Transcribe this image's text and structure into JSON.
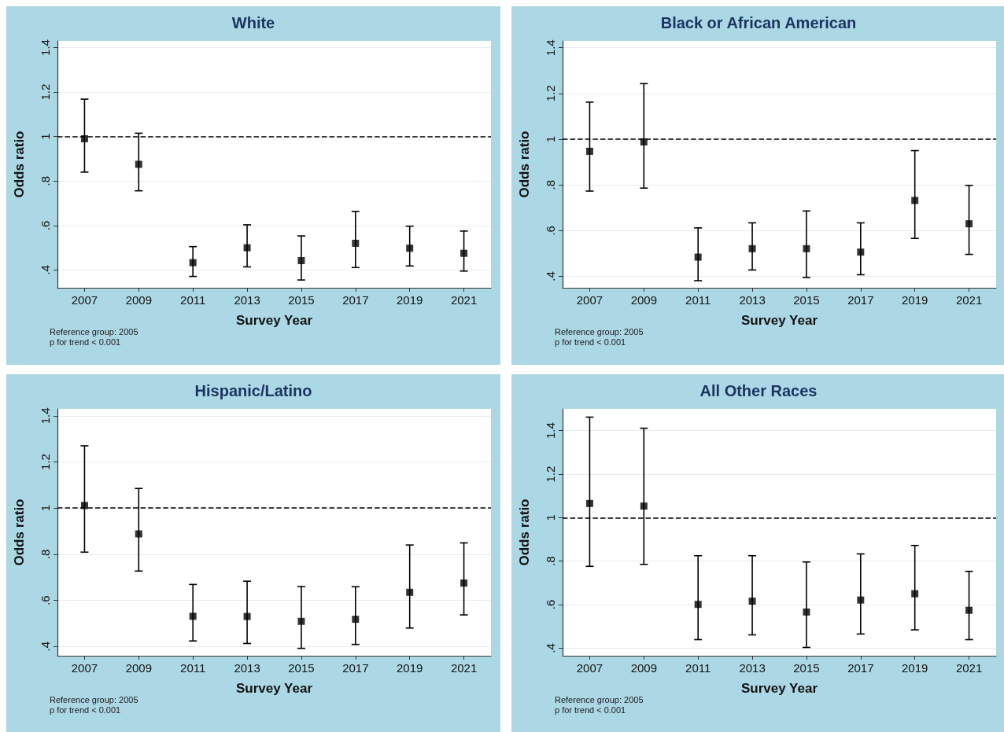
{
  "chart_data": [
    {
      "type": "scatter",
      "title": "White",
      "xlabel": "Survey Year",
      "ylabel": "Odds ratio",
      "categories": [
        "2007",
        "2009",
        "2011",
        "2013",
        "2015",
        "2017",
        "2019",
        "2021"
      ],
      "series": [
        {
          "color": "#000000",
          "values": [
            0.99,
            0.875,
            0.433,
            0.5,
            0.442,
            0.52,
            0.498,
            0.475
          ],
          "errors": [
            [
              0.84,
              1.168
            ],
            [
              0.756,
              1.015
            ],
            [
              0.371,
              0.505
            ],
            [
              0.414,
              0.603
            ],
            [
              0.355,
              0.553
            ],
            [
              0.411,
              0.663
            ],
            [
              0.418,
              0.597
            ],
            [
              0.395,
              0.575
            ]
          ]
        }
      ],
      "ylim": [
        0.32,
        1.43
      ],
      "yticks": [
        {
          "value": 0.4,
          "label": ".4"
        },
        {
          "value": 0.6,
          "label": ".6"
        },
        {
          "value": 0.8,
          "label": ".8"
        },
        {
          "value": 1,
          "label": "1"
        },
        {
          "value": 1.2,
          "label": "1.2"
        },
        {
          "value": 1.4,
          "label": "1.4"
        }
      ],
      "ref_lines": [
        {
          "axis": "y",
          "value": 1,
          "color": "#000000",
          "line_style": "dashed"
        }
      ],
      "grid": "y",
      "marker": "square",
      "annotations": [
        "Reference group: 2005",
        "p for trend < 0.001"
      ]
    },
    {
      "type": "scatter",
      "title": "Black or African American",
      "xlabel": "Survey Year",
      "ylabel": "Odds ratio",
      "categories": [
        "2007",
        "2009",
        "2011",
        "2013",
        "2015",
        "2017",
        "2019",
        "2021"
      ],
      "series": [
        {
          "color": "#000000",
          "values": [
            0.947,
            0.988,
            0.484,
            0.521,
            0.521,
            0.506,
            0.732,
            0.63
          ],
          "errors": [
            [
              0.773,
              1.162
            ],
            [
              0.786,
              1.243
            ],
            [
              0.381,
              0.612
            ],
            [
              0.428,
              0.634
            ],
            [
              0.395,
              0.686
            ],
            [
              0.407,
              0.634
            ],
            [
              0.566,
              0.95
            ],
            [
              0.496,
              0.798
            ]
          ]
        }
      ],
      "ylim": [
        0.35,
        1.43
      ],
      "yticks": [
        {
          "value": 0.4,
          "label": ".4"
        },
        {
          "value": 0.6,
          "label": ".6"
        },
        {
          "value": 0.8,
          "label": ".8"
        },
        {
          "value": 1,
          "label": "1"
        },
        {
          "value": 1.2,
          "label": "1.2"
        },
        {
          "value": 1.4,
          "label": "1.4"
        }
      ],
      "ref_lines": [
        {
          "axis": "y",
          "value": 1,
          "color": "#000000",
          "line_style": "dashed"
        }
      ],
      "grid": "y",
      "marker": "square",
      "annotations": [
        "Reference group: 2005",
        "p for trend < 0.001"
      ]
    },
    {
      "type": "scatter",
      "title": "Hispanic/Latino",
      "xlabel": "Survey Year",
      "ylabel": "Odds ratio",
      "categories": [
        "2007",
        "2009",
        "2011",
        "2013",
        "2015",
        "2017",
        "2019",
        "2021"
      ],
      "series": [
        {
          "color": "#000000",
          "values": [
            1.011,
            0.888,
            0.531,
            0.53,
            0.509,
            0.518,
            0.635,
            0.675
          ],
          "errors": [
            [
              0.809,
              1.27
            ],
            [
              0.727,
              1.085
            ],
            [
              0.424,
              0.669
            ],
            [
              0.413,
              0.683
            ],
            [
              0.392,
              0.66
            ],
            [
              0.409,
              0.659
            ],
            [
              0.48,
              0.84
            ],
            [
              0.537,
              0.849
            ]
          ]
        }
      ],
      "ylim": [
        0.36,
        1.43
      ],
      "yticks": [
        {
          "value": 0.4,
          "label": ".4"
        },
        {
          "value": 0.6,
          "label": ".6"
        },
        {
          "value": 0.8,
          "label": ".8"
        },
        {
          "value": 1,
          "label": "1"
        },
        {
          "value": 1.2,
          "label": "1.2"
        },
        {
          "value": 1.4,
          "label": "1.4"
        }
      ],
      "ref_lines": [
        {
          "axis": "y",
          "value": 1,
          "color": "#000000",
          "line_style": "dashed"
        }
      ],
      "grid": "y",
      "marker": "square",
      "annotations": [
        "Reference group: 2005",
        "p for trend < 0.001"
      ]
    },
    {
      "type": "scatter",
      "title": "All Other Races",
      "xlabel": "Survey Year",
      "ylabel": "Odds ratio",
      "categories": [
        "2007",
        "2009",
        "2011",
        "2013",
        "2015",
        "2017",
        "2019",
        "2021"
      ],
      "series": [
        {
          "color": "#000000",
          "values": [
            1.065,
            1.053,
            0.601,
            0.616,
            0.566,
            0.621,
            0.65,
            0.574
          ],
          "errors": [
            [
              0.776,
              1.462
            ],
            [
              0.785,
              1.411
            ],
            [
              0.439,
              0.825
            ],
            [
              0.461,
              0.825
            ],
            [
              0.403,
              0.796
            ],
            [
              0.465,
              0.833
            ],
            [
              0.484,
              0.872
            ],
            [
              0.439,
              0.753
            ]
          ]
        }
      ],
      "ylim": [
        0.365,
        1.5
      ],
      "yticks": [
        {
          "value": 0.4,
          "label": ".4"
        },
        {
          "value": 0.6,
          "label": ".6"
        },
        {
          "value": 0.8,
          "label": ".8"
        },
        {
          "value": 1,
          "label": "1"
        },
        {
          "value": 1.2,
          "label": "1.2"
        },
        {
          "value": 1.4,
          "label": "1.4"
        }
      ],
      "ref_lines": [
        {
          "axis": "y",
          "value": 1,
          "color": "#000000",
          "line_style": "dashed"
        }
      ],
      "grid": "y",
      "marker": "square",
      "annotations": [
        "Reference group: 2005",
        "p for trend < 0.001"
      ]
    }
  ]
}
